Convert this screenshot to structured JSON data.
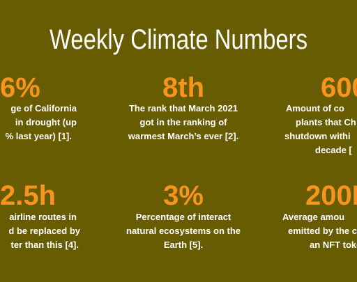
{
  "header": {
    "title": "Weekly Climate Numbers"
  },
  "cells": [
    {
      "number": "6%",
      "lines": [
        "ge of California",
        "in drought (up",
        "% last year) [1]."
      ]
    },
    {
      "number": "8th",
      "lines": [
        "The rank that March 2021",
        "got in the ranking of",
        "warmest March’s ever [2]."
      ]
    },
    {
      "number": "600",
      "lines": [
        "Amount of co",
        "plants that Ch",
        "shutdown withi",
        "decade ["
      ]
    },
    {
      "number": "2.5h",
      "lines": [
        "airline routes in",
        "d be replaced by",
        "ter than this [4]."
      ]
    },
    {
      "number": "3%",
      "lines": [
        "Percentage of interact",
        "natural ecosystems on the",
        "Earth [5]."
      ]
    },
    {
      "number": "200I",
      "lines": [
        "Average amou",
        "emitted by the c",
        "an NFT toke"
      ]
    }
  ]
}
